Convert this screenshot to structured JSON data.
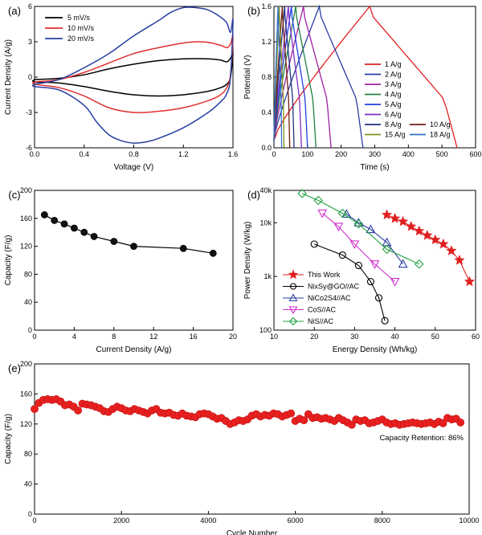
{
  "chart_data": [
    {
      "panel_label": "(a)",
      "type": "line",
      "xlabel": "Voltage (V)",
      "ylabel": "Current Density (A/g)",
      "xlim": [
        0.0,
        1.6
      ],
      "ylim": [
        -6,
        6
      ],
      "xticks": [
        0.0,
        0.4,
        0.8,
        1.2,
        1.6
      ],
      "xtick_labels": [
        "0.0",
        "0.4",
        "0.8",
        "1.2",
        "1.6"
      ],
      "yticks": [
        -6,
        -3,
        0,
        3,
        6
      ],
      "ytick_labels": [
        "-6",
        "-3",
        "0",
        "3",
        "6"
      ],
      "legend": "top-left",
      "series": [
        {
          "name": "5 mV/s",
          "color": "#000000",
          "closed": true,
          "x": [
            0.0,
            0.2,
            0.4,
            0.6,
            0.8,
            1.0,
            1.2,
            1.4,
            1.5,
            1.55,
            1.58,
            1.6,
            1.58,
            1.55,
            1.5,
            1.4,
            1.2,
            1.0,
            0.8,
            0.6,
            0.4,
            0.2,
            0.0
          ],
          "y": [
            -0.2,
            -0.1,
            0.2,
            0.7,
            1.1,
            1.4,
            1.55,
            1.55,
            1.45,
            1.3,
            1.6,
            2.0,
            0.0,
            -0.6,
            -0.9,
            -1.2,
            -1.5,
            -1.6,
            -1.5,
            -1.2,
            -0.8,
            -0.5,
            -0.4
          ]
        },
        {
          "name": "10 mV/s",
          "color": "#e03030",
          "closed": true,
          "x": [
            0.0,
            0.2,
            0.4,
            0.6,
            0.8,
            1.0,
            1.2,
            1.3,
            1.4,
            1.5,
            1.55,
            1.58,
            1.6,
            1.58,
            1.55,
            1.5,
            1.4,
            1.2,
            1.0,
            0.8,
            0.6,
            0.4,
            0.2,
            0.0
          ],
          "y": [
            -0.4,
            -0.2,
            0.4,
            1.2,
            2.0,
            2.5,
            2.9,
            3.0,
            2.95,
            2.7,
            2.5,
            2.8,
            3.4,
            0.2,
            -0.9,
            -1.5,
            -2.0,
            -2.6,
            -2.9,
            -3.0,
            -2.6,
            -1.6,
            -0.9,
            -0.6
          ]
        },
        {
          "name": "20 mV/s",
          "color": "#2a3fa0",
          "closed": true,
          "x": [
            0.0,
            0.2,
            0.4,
            0.6,
            0.8,
            1.0,
            1.1,
            1.2,
            1.3,
            1.4,
            1.5,
            1.55,
            1.58,
            1.6,
            1.58,
            1.55,
            1.5,
            1.4,
            1.2,
            1.0,
            0.9,
            0.8,
            0.7,
            0.6,
            0.5,
            0.4,
            0.2,
            0.0
          ],
          "y": [
            -0.6,
            -0.2,
            0.8,
            2.0,
            3.5,
            4.8,
            5.5,
            5.9,
            5.9,
            5.7,
            5.1,
            4.6,
            3.8,
            4.8,
            0.0,
            -1.4,
            -2.1,
            -3.0,
            -4.3,
            -5.2,
            -5.5,
            -5.6,
            -5.4,
            -4.9,
            -3.8,
            -2.4,
            -1.1,
            -0.8
          ]
        }
      ]
    },
    {
      "panel_label": "(b)",
      "type": "line",
      "xlabel": "Time (s)",
      "ylabel": "Potential (V)",
      "xlim": [
        0,
        600
      ],
      "ylim": [
        0.0,
        1.6
      ],
      "xticks": [
        0,
        100,
        200,
        300,
        400,
        500,
        600
      ],
      "xtick_labels": [
        "0",
        "100",
        "200",
        "300",
        "400",
        "500",
        "600"
      ],
      "yticks": [
        0.0,
        0.4,
        0.8,
        1.2,
        1.6
      ],
      "ytick_labels": [
        "0.0",
        "0.4",
        "0.8",
        "1.2",
        "1.6"
      ],
      "legend": "right",
      "series": [
        {
          "name": "1 A/g",
          "color": "#e02020",
          "charge_time": 285,
          "discharge_end": 545
        },
        {
          "name": "2 A/g",
          "color": "#2a3fa0",
          "charge_time": 135,
          "discharge_end": 265
        },
        {
          "name": "3 A/g",
          "color": "#a020a0",
          "charge_time": 88,
          "discharge_end": 170
        },
        {
          "name": "4 A/g",
          "color": "#208040",
          "charge_time": 65,
          "discharge_end": 125
        },
        {
          "name": "5 A/g",
          "color": "#2040e0",
          "charge_time": 52,
          "discharge_end": 100
        },
        {
          "name": "6 A/g",
          "color": "#8030c0",
          "charge_time": 43,
          "discharge_end": 82
        },
        {
          "name": "8 A/g",
          "color": "#203080",
          "charge_time": 32,
          "discharge_end": 60
        },
        {
          "name": "10 A/g",
          "color": "#702010",
          "charge_time": 25,
          "discharge_end": 47
        },
        {
          "name": "15 A/g",
          "color": "#809020",
          "charge_time": 16,
          "discharge_end": 30
        },
        {
          "name": "18 A/g",
          "color": "#3070d0",
          "charge_time": 12,
          "discharge_end": 23
        }
      ]
    },
    {
      "panel_label": "(c)",
      "type": "line",
      "xlabel": "Current Density (A/g)",
      "ylabel": "Capacity (F/g)",
      "xlim": [
        0,
        20
      ],
      "ylim": [
        0,
        200
      ],
      "xticks": [
        0,
        4,
        8,
        12,
        16,
        20
      ],
      "xtick_labels": [
        "0",
        "4",
        "8",
        "12",
        "16",
        "20"
      ],
      "yticks": [
        0,
        40,
        80,
        120,
        160,
        200
      ],
      "ytick_labels": [
        "0",
        "40",
        "80",
        "120",
        "160",
        "200"
      ],
      "series": [
        {
          "color": "#000000",
          "marker": "circle",
          "x": [
            1,
            2,
            3,
            4,
            5,
            6,
            8,
            10,
            15,
            18
          ],
          "y": [
            165,
            157,
            152,
            146,
            140,
            134,
            127,
            120,
            117,
            110
          ]
        }
      ]
    },
    {
      "panel_label": "(d)",
      "type": "scatter",
      "xlabel": "Energy Density (Wh/kg)",
      "ylabel": "Power Density (W/kg)",
      "xlim": [
        10,
        60
      ],
      "ylim": [
        100,
        40000
      ],
      "yscale": "log",
      "xticks": [
        10,
        20,
        30,
        40,
        50,
        60
      ],
      "xtick_labels": [
        "10",
        "20",
        "30",
        "40",
        "50",
        "60"
      ],
      "yticks": [
        100,
        1000,
        10000,
        40000
      ],
      "ytick_labels": [
        "100",
        "1k",
        "10k",
        "40k"
      ],
      "legend": "bottom-left",
      "series": [
        {
          "name": "This Work",
          "color": "#e02020",
          "marker": "star",
          "x": [
            38,
            40,
            42,
            44,
            46,
            48,
            50,
            52,
            54,
            56,
            58.5
          ],
          "y": [
            14000,
            12000,
            10500,
            8500,
            7000,
            5800,
            4800,
            4000,
            3000,
            2000,
            800
          ]
        },
        {
          "name": "NixSy@GO//AC",
          "color": "#000000",
          "marker": "circle",
          "x": [
            20,
            27,
            31,
            34,
            36,
            37.5
          ],
          "y": [
            4000,
            2500,
            1600,
            800,
            400,
            150
          ]
        },
        {
          "name": "NiCo2S4//AC",
          "color": "#2a3fa0",
          "marker": "triangle-up",
          "x": [
            28,
            31,
            34,
            38,
            42
          ],
          "y": [
            14500,
            10000,
            7500,
            4300,
            1700
          ]
        },
        {
          "name": "CoS//AC",
          "color": "#d030d0",
          "marker": "triangle-down",
          "x": [
            22,
            26,
            30,
            35,
            40
          ],
          "y": [
            15000,
            8500,
            4000,
            1700,
            800
          ]
        },
        {
          "name": "NiS//AC",
          "color": "#20a040",
          "marker": "diamond",
          "x": [
            17,
            21,
            27,
            31,
            38,
            46
          ],
          "y": [
            35000,
            26000,
            15000,
            9500,
            3200,
            1700
          ]
        }
      ]
    },
    {
      "panel_label": "(e)",
      "type": "scatter",
      "xlabel": "Cycle Number",
      "ylabel": "Capacity (F/g)",
      "xlim": [
        0,
        10000
      ],
      "ylim": [
        0,
        200
      ],
      "xticks": [
        0,
        2000,
        4000,
        6000,
        8000,
        10000
      ],
      "xtick_labels": [
        "0",
        "2000",
        "4000",
        "6000",
        "8000",
        "10000"
      ],
      "yticks": [
        0,
        40,
        80,
        120,
        160,
        200
      ],
      "ytick_labels": [
        "0",
        "40",
        "80",
        "120",
        "160",
        "200"
      ],
      "annotation": "Capacity Retention: 86%",
      "series": [
        {
          "color": "#e02020",
          "marker": "circle",
          "x": [
            0,
            100,
            200,
            300,
            400,
            500,
            600,
            700,
            800,
            900,
            1000,
            1100,
            1200,
            1300,
            1400,
            1500,
            1600,
            1700,
            1800,
            1900,
            2000,
            2100,
            2200,
            2300,
            2400,
            2500,
            2600,
            2700,
            2800,
            2900,
            3000,
            3100,
            3200,
            3300,
            3400,
            3500,
            3600,
            3700,
            3800,
            3900,
            4000,
            4100,
            4200,
            4300,
            4400,
            4500,
            4600,
            4700,
            4800,
            4900,
            5000,
            5100,
            5200,
            5300,
            5400,
            5500,
            5600,
            5700,
            5800,
            5900,
            6000,
            6100,
            6200,
            6300,
            6400,
            6500,
            6600,
            6700,
            6800,
            6900,
            7000,
            7100,
            7200,
            7300,
            7400,
            7500,
            7600,
            7700,
            7800,
            7900,
            8000,
            8100,
            8200,
            8300,
            8400,
            8500,
            8600,
            8700,
            8800,
            8900,
            9000,
            9100,
            9200,
            9300,
            9400,
            9500,
            9600,
            9700,
            9800
          ],
          "y": [
            140,
            148,
            152,
            153,
            152,
            153,
            150,
            145,
            146,
            143,
            138,
            147,
            146,
            145,
            143,
            141,
            137,
            136,
            140,
            143,
            141,
            138,
            137,
            140,
            138,
            136,
            134,
            138,
            140,
            135,
            134,
            135,
            132,
            131,
            134,
            131,
            130,
            129,
            133,
            134,
            133,
            130,
            127,
            128,
            124,
            120,
            122,
            125,
            124,
            126,
            131,
            133,
            130,
            132,
            131,
            134,
            133,
            130,
            132,
            134,
            124,
            127,
            125,
            133,
            128,
            129,
            127,
            128,
            126,
            124,
            128,
            125,
            122,
            119,
            126,
            124,
            125,
            121,
            122,
            124,
            126,
            122,
            120,
            121,
            119,
            120,
            121,
            122,
            121,
            120,
            121,
            122,
            120,
            123,
            121,
            128,
            126,
            127,
            122
          ]
        }
      ]
    }
  ]
}
